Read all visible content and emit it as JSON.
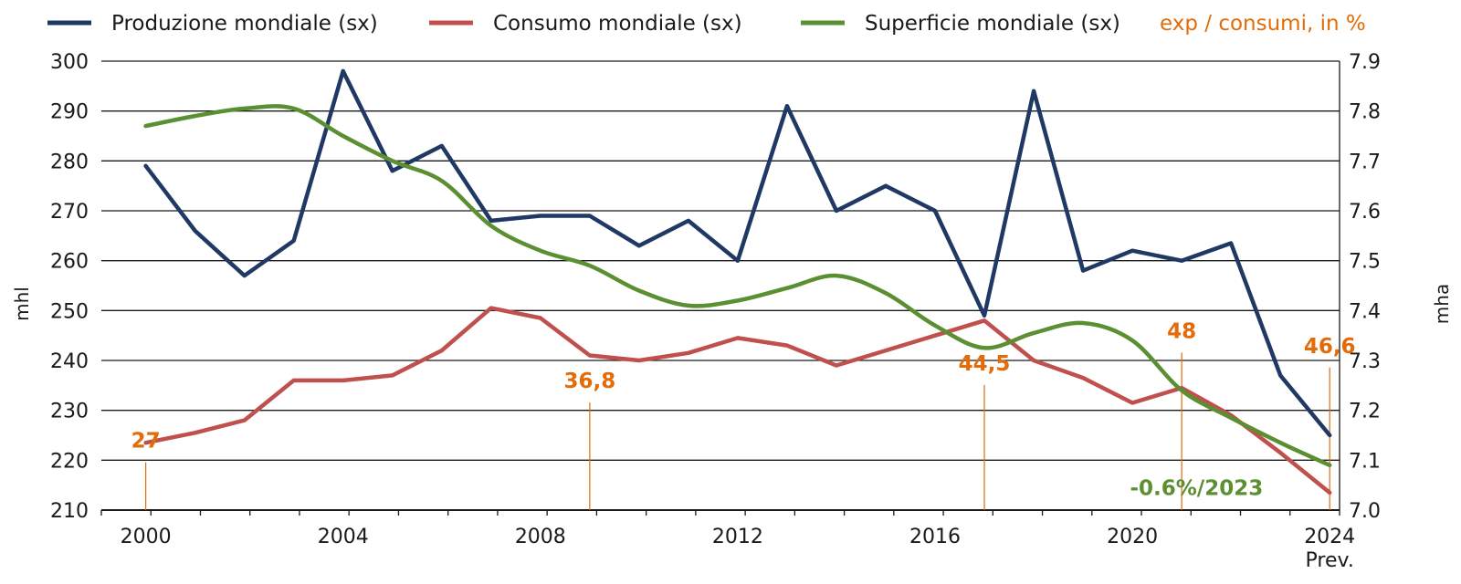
{
  "chart_data": {
    "type": "line",
    "x_labels": [
      "2000",
      "2004",
      "2008",
      "2012",
      "2016",
      "2020",
      "2024"
    ],
    "x_sublabel": "Prev.",
    "ylabel_left": "mhl",
    "ylabel_right": "mha",
    "ylim_left": [
      210,
      300
    ],
    "ylim_right": [
      7.0,
      7.9
    ],
    "yticks_left": [
      "210",
      "220",
      "230",
      "240",
      "250",
      "260",
      "270",
      "280",
      "290",
      "300"
    ],
    "yticks_right": [
      "7.0",
      "7.1",
      "7.2",
      "7.3",
      "7.4",
      "7.5",
      "7.6",
      "7.7",
      "7.8",
      "7.9"
    ],
    "grid": true,
    "legend": [
      {
        "label": "Produzione mondiale (sx)",
        "color": "#1f3864"
      },
      {
        "label": "Consumo mondiale (sx)",
        "color": "#c0504d"
      },
      {
        "label": "Superficie mondiale (sx)",
        "color": "#5a8f32"
      },
      {
        "label": "exp / consumi, in %",
        "color": "#e36c09"
      }
    ],
    "series": [
      {
        "name": "Produzione mondiale (sx)",
        "axis": "left",
        "color": "#1f3864",
        "smooth": false,
        "points": [
          [
            2000,
            279
          ],
          [
            2001,
            266
          ],
          [
            2002,
            257
          ],
          [
            2003,
            264
          ],
          [
            2004,
            298
          ],
          [
            2005,
            278
          ],
          [
            2006,
            283
          ],
          [
            2007,
            268
          ],
          [
            2008,
            269
          ],
          [
            2009,
            269
          ],
          [
            2010,
            263
          ],
          [
            2011,
            268
          ],
          [
            2012,
            260
          ],
          [
            2013,
            291
          ],
          [
            2014,
            270
          ],
          [
            2015,
            275
          ],
          [
            2016,
            270
          ],
          [
            2017,
            249
          ],
          [
            2018,
            294
          ],
          [
            2019,
            258
          ],
          [
            2020,
            262
          ],
          [
            2021,
            260
          ],
          [
            2022,
            263.5
          ],
          [
            2023,
            237
          ],
          [
            2024,
            225
          ]
        ]
      },
      {
        "name": "Consumo mondiale (sx)",
        "axis": "left",
        "color": "#c0504d",
        "smooth": false,
        "points": [
          [
            2000,
            223.5
          ],
          [
            2001,
            225.5
          ],
          [
            2002,
            228
          ],
          [
            2003,
            236
          ],
          [
            2004,
            236
          ],
          [
            2005,
            237
          ],
          [
            2006,
            242
          ],
          [
            2007,
            250.5
          ],
          [
            2008,
            248.5
          ],
          [
            2009,
            241
          ],
          [
            2010,
            240
          ],
          [
            2011,
            241.5
          ],
          [
            2012,
            244.5
          ],
          [
            2013,
            243
          ],
          [
            2014,
            239
          ],
          [
            2015,
            242
          ],
          [
            2016,
            245
          ],
          [
            2017,
            248
          ],
          [
            2018,
            240
          ],
          [
            2019,
            236.5
          ],
          [
            2020,
            231.5
          ],
          [
            2021,
            234.5
          ],
          [
            2022,
            229
          ],
          [
            2023,
            221.5
          ],
          [
            2024,
            213.5
          ]
        ]
      },
      {
        "name": "Superficie mondiale (sx)",
        "axis": "right",
        "color": "#5a8f32",
        "smooth": true,
        "points": [
          [
            2000,
            7.77
          ],
          [
            2001,
            7.79
          ],
          [
            2002,
            7.805
          ],
          [
            2003,
            7.805
          ],
          [
            2004,
            7.75
          ],
          [
            2005,
            7.7
          ],
          [
            2006,
            7.66
          ],
          [
            2007,
            7.57
          ],
          [
            2008,
            7.52
          ],
          [
            2009,
            7.49
          ],
          [
            2010,
            7.44
          ],
          [
            2011,
            7.41
          ],
          [
            2012,
            7.42
          ],
          [
            2013,
            7.445
          ],
          [
            2014,
            7.47
          ],
          [
            2015,
            7.435
          ],
          [
            2016,
            7.37
          ],
          [
            2017,
            7.325
          ],
          [
            2018,
            7.355
          ],
          [
            2019,
            7.375
          ],
          [
            2020,
            7.34
          ],
          [
            2021,
            7.24
          ],
          [
            2022,
            7.185
          ],
          [
            2023,
            7.135
          ],
          [
            2024,
            7.09
          ]
        ]
      }
    ],
    "annotations": [
      {
        "text": "27",
        "x": 2000,
        "axis": "left",
        "y": 222.5
      },
      {
        "text": "36,8",
        "x": 2009,
        "axis": "left",
        "y": 234.5
      },
      {
        "text": "44,5",
        "x": 2017,
        "axis": "left",
        "y": 238
      },
      {
        "text": "48",
        "x": 2021,
        "axis": "left",
        "y": 244.5
      },
      {
        "text": "46,6",
        "x": 2024,
        "axis": "left",
        "y": 241.5
      },
      {
        "text": "-0.6%/2023",
        "x": 2021.3,
        "axis": "left",
        "y": 213
      }
    ],
    "annotation_colors": {
      "orange": "#e36c09",
      "green": "#5a8f32"
    }
  }
}
